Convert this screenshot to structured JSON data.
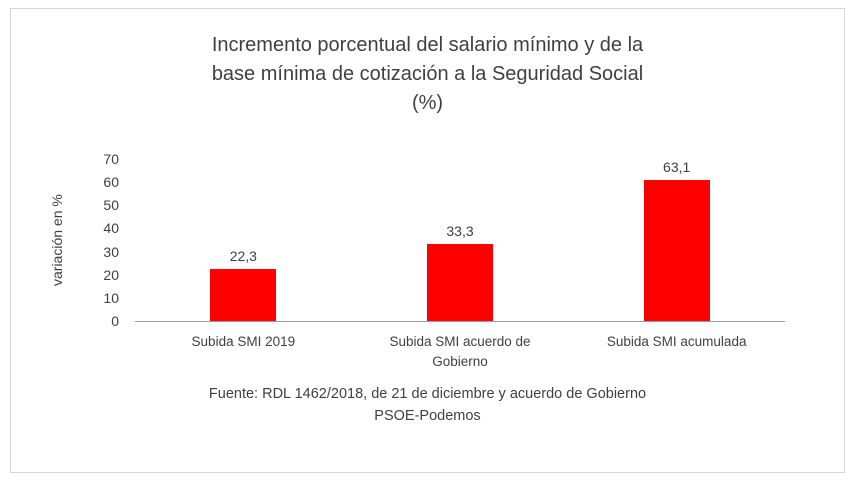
{
  "chart_data": {
    "type": "bar",
    "title": "Incremento porcentual del salario mínimo y de la base mínima de cotización a la Seguridad Social (%)",
    "title_display": "Incremento porcentual del salario mínimo y de la\nbase mínima de cotización a la Seguridad Social\n(%)",
    "categories": [
      "Subida SMI 2019",
      "Subida SMI acuerdo de Gobierno",
      "Subida SMI acumulada"
    ],
    "values": [
      22.3,
      33.3,
      63.1
    ],
    "value_labels": [
      "22,3",
      "33,3",
      "63,1"
    ],
    "xlabel": "",
    "ylabel": "variación en %",
    "ylim": [
      0,
      70
    ],
    "yticks": [
      0,
      10,
      20,
      30,
      40,
      50,
      60,
      70
    ],
    "bar_color": "#ff0000",
    "axis_line_color": "#9c9c9c",
    "grid": false,
    "legend": "none",
    "source": "Fuente: RDL 1462/2018, de 21 de diciembre y acuerdo de Gobierno\nPSOE-Podemos"
  }
}
